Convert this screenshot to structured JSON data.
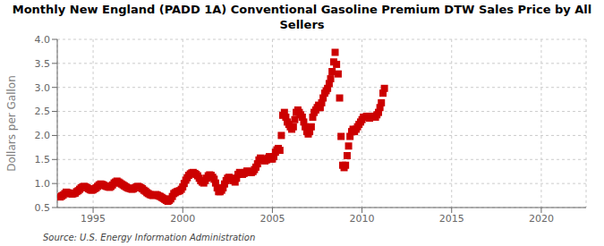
{
  "chart_data": {
    "type": "scatter",
    "title": "Monthly New England (PADD 1A) Conventional Gasoline Premium DTW Sales Price by All\nSellers",
    "ylabel": "Dollars per Gallon",
    "annotations": [
      "Source: U.S. Energy Information Administration"
    ],
    "color": "#cc0000",
    "marker": "square",
    "grid": true,
    "xlim": [
      1993.0,
      2022.5
    ],
    "ylim": [
      0.5,
      4.0
    ],
    "xticks": [
      1995,
      2000,
      2005,
      2010,
      2015,
      2020
    ],
    "yticks": [
      0.5,
      {
        "value": 1.0,
        "label": "1.0"
      },
      1.5,
      {
        "value": 2.0,
        "label": "2.0"
      },
      2.5,
      {
        "value": 3.0,
        "label": "3.0"
      },
      3.5,
      {
        "value": 4.0,
        "label": "4.0"
      }
    ],
    "x": [
      1993.17,
      1993.25,
      1993.33,
      1993.42,
      1993.5,
      1993.58,
      1993.67,
      1993.75,
      1993.83,
      1993.92,
      1994.0,
      1994.08,
      1994.17,
      1994.25,
      1994.33,
      1994.42,
      1994.5,
      1994.58,
      1994.67,
      1994.75,
      1994.83,
      1994.92,
      1995.0,
      1995.08,
      1995.17,
      1995.25,
      1995.33,
      1995.42,
      1995.5,
      1995.58,
      1995.67,
      1995.75,
      1995.83,
      1995.92,
      1996.0,
      1996.08,
      1996.17,
      1996.25,
      1996.33,
      1996.42,
      1996.5,
      1996.58,
      1996.67,
      1996.75,
      1996.83,
      1996.92,
      1997.0,
      1997.08,
      1997.17,
      1997.25,
      1997.33,
      1997.42,
      1997.5,
      1997.58,
      1997.67,
      1997.75,
      1997.83,
      1997.92,
      1998.0,
      1998.08,
      1998.17,
      1998.25,
      1998.33,
      1998.42,
      1998.5,
      1998.58,
      1998.67,
      1998.75,
      1998.83,
      1998.92,
      1999.0,
      1999.08,
      1999.17,
      1999.25,
      1999.33,
      1999.42,
      1999.5,
      1999.58,
      1999.67,
      1999.75,
      1999.83,
      1999.92,
      2000.0,
      2000.08,
      2000.17,
      2000.25,
      2000.33,
      2000.42,
      2000.5,
      2000.58,
      2000.67,
      2000.75,
      2000.83,
      2000.92,
      2001.0,
      2001.08,
      2001.17,
      2001.25,
      2001.33,
      2001.42,
      2001.5,
      2001.58,
      2001.67,
      2001.75,
      2001.83,
      2001.92,
      2002.0,
      2002.08,
      2002.17,
      2002.25,
      2002.33,
      2002.42,
      2002.5,
      2002.58,
      2002.67,
      2002.75,
      2002.83,
      2002.92,
      2003.0,
      2003.08,
      2003.17,
      2003.25,
      2003.33,
      2003.42,
      2003.5,
      2003.58,
      2003.67,
      2003.75,
      2003.83,
      2003.92,
      2004.0,
      2004.08,
      2004.17,
      2004.25,
      2004.33,
      2004.42,
      2004.5,
      2004.58,
      2004.67,
      2004.75,
      2004.83,
      2004.92,
      2005.0,
      2005.08,
      2005.17,
      2005.25,
      2005.33,
      2005.42,
      2005.5,
      2005.58,
      2005.67,
      2005.75,
      2005.83,
      2005.92,
      2006.0,
      2006.08,
      2006.17,
      2006.25,
      2006.33,
      2006.42,
      2006.5,
      2006.58,
      2006.67,
      2006.75,
      2006.83,
      2006.92,
      2007.0,
      2007.08,
      2007.17,
      2007.25,
      2007.33,
      2007.42,
      2007.5,
      2007.58,
      2007.67,
      2007.75,
      2007.83,
      2007.92,
      2008.0,
      2008.08,
      2008.17,
      2008.25,
      2008.33,
      2008.42,
      2008.5,
      2008.58,
      2008.67,
      2008.75,
      2008.83,
      2008.92,
      2009.0,
      2009.08,
      2009.17,
      2009.25,
      2009.33,
      2009.42,
      2009.5,
      2009.58,
      2009.67,
      2009.75,
      2009.83,
      2009.92,
      2010.0,
      2010.08,
      2010.17,
      2010.25,
      2010.33,
      2010.42,
      2010.5,
      2010.58,
      2010.67,
      2010.75,
      2010.83,
      2010.92,
      2011.0,
      2011.08,
      2011.17,
      2011.25
    ],
    "values": [
      0.72,
      0.74,
      0.76,
      0.79,
      0.82,
      0.81,
      0.8,
      0.79,
      0.78,
      0.79,
      0.8,
      0.83,
      0.85,
      0.88,
      0.91,
      0.93,
      0.94,
      0.93,
      0.91,
      0.89,
      0.87,
      0.86,
      0.87,
      0.89,
      0.91,
      0.94,
      0.97,
      0.99,
      0.98,
      0.97,
      0.95,
      0.94,
      0.93,
      0.92,
      0.94,
      0.97,
      1.01,
      1.03,
      1.05,
      1.03,
      1.01,
      0.99,
      0.97,
      0.95,
      0.93,
      0.91,
      0.9,
      0.89,
      0.88,
      0.89,
      0.91,
      0.93,
      0.94,
      0.93,
      0.91,
      0.89,
      0.86,
      0.84,
      0.81,
      0.79,
      0.77,
      0.76,
      0.75,
      0.76,
      0.77,
      0.76,
      0.74,
      0.73,
      0.71,
      0.69,
      0.67,
      0.65,
      0.63,
      0.65,
      0.68,
      0.73,
      0.79,
      0.81,
      0.83,
      0.84,
      0.85,
      0.88,
      0.93,
      1.0,
      1.07,
      1.12,
      1.17,
      1.2,
      1.22,
      1.23,
      1.21,
      1.19,
      1.16,
      1.11,
      1.06,
      1.03,
      1.01,
      1.06,
      1.11,
      1.16,
      1.18,
      1.17,
      1.13,
      1.09,
      1.01,
      0.91,
      0.83,
      0.83,
      0.86,
      0.91,
      0.99,
      1.06,
      1.11,
      1.13,
      1.11,
      1.09,
      1.06,
      1.03,
      1.11,
      1.19,
      1.23,
      1.21,
      1.19,
      1.21,
      1.23,
      1.26,
      1.25,
      1.23,
      1.23,
      1.25,
      1.29,
      1.34,
      1.41,
      1.49,
      1.53,
      1.51,
      1.49,
      1.47,
      1.49,
      1.53,
      1.56,
      1.51,
      1.51,
      1.56,
      1.65,
      1.7,
      1.73,
      1.69,
      2.0,
      2.42,
      2.48,
      2.38,
      2.28,
      2.23,
      2.18,
      2.13,
      2.18,
      2.33,
      2.48,
      2.53,
      2.48,
      2.43,
      2.38,
      2.28,
      2.18,
      2.08,
      2.03,
      2.08,
      2.18,
      2.38,
      2.48,
      2.53,
      2.58,
      2.63,
      2.58,
      2.68,
      2.78,
      2.88,
      2.93,
      2.98,
      3.08,
      3.18,
      3.33,
      3.53,
      3.73,
      3.48,
      3.28,
      2.78,
      1.98,
      1.38,
      1.33,
      1.38,
      1.58,
      1.78,
      1.98,
      2.08,
      2.13,
      2.08,
      2.13,
      2.18,
      2.23,
      2.28,
      2.33,
      2.38,
      2.38,
      2.4,
      2.38,
      2.36,
      2.38,
      2.4,
      2.4,
      2.38,
      2.43,
      2.48,
      2.58,
      2.68,
      2.88,
      2.98
    ]
  }
}
